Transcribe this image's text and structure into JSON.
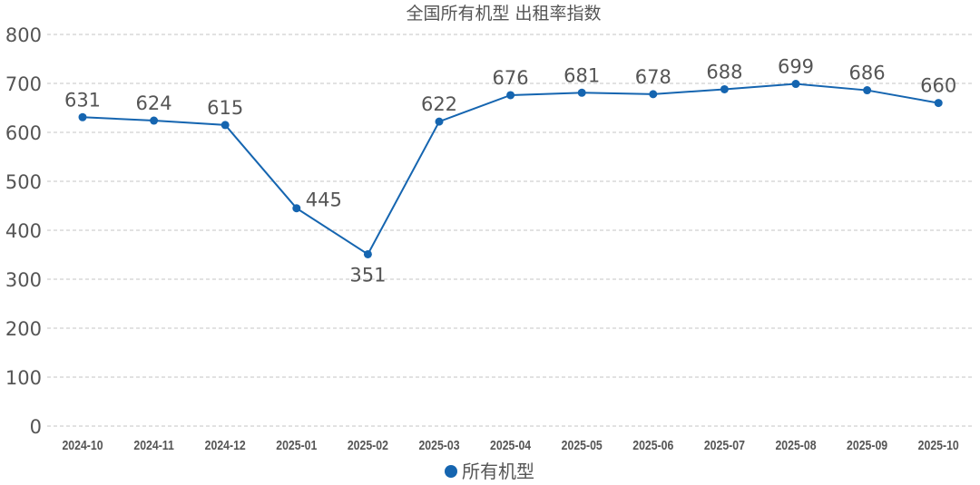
{
  "chart_data": {
    "type": "line",
    "title": "全国所有机型  出租率指数",
    "categories": [
      "2024-10",
      "2024-11",
      "2024-12",
      "2025-01",
      "2025-02",
      "2025-03",
      "2025-04",
      "2025-05",
      "2025-06",
      "2025-07",
      "2025-08",
      "2025-09",
      "2025-10"
    ],
    "series": [
      {
        "name": "所有机型",
        "values": [
          631,
          624,
          615,
          445,
          351,
          622,
          676,
          681,
          678,
          688,
          699,
          686,
          660
        ],
        "color": "#1565b0"
      }
    ],
    "xlabel": "",
    "ylabel": "",
    "ylim": [
      0,
      800
    ],
    "yticks": [
      "0",
      "100",
      "200",
      "300",
      "400",
      "500",
      "600",
      "700",
      "800"
    ],
    "grid": true,
    "grid_style": "dashed horizontal",
    "data_labels": true,
    "legend_position": "bottom"
  }
}
